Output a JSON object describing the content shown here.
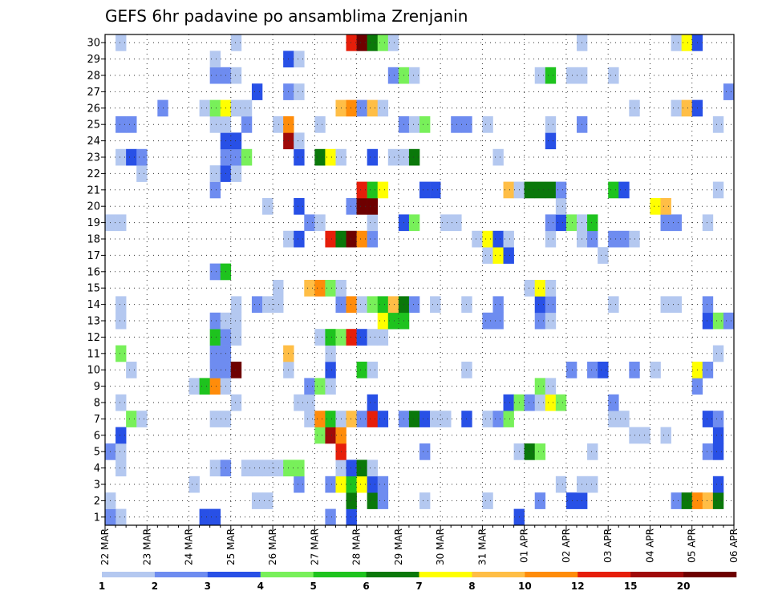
{
  "chart_data": {
    "type": "heatmap",
    "title": "GEFS 6hr padavine po ansamblima Zrenjanin",
    "x_tick_labels": [
      "22 MAR",
      "23 MAR",
      "24 MAR",
      "25 MAR",
      "26 MAR",
      "27 MAR",
      "28 MAR",
      "29 MAR",
      "30 MAR",
      "31 MAR",
      "01 APR",
      "02 APR",
      "03 APR",
      "04 APR",
      "05 APR",
      "06 APR"
    ],
    "y_tick_labels": [
      "1",
      "2",
      "3",
      "4",
      "5",
      "6",
      "7",
      "8",
      "9",
      "10",
      "11",
      "12",
      "13",
      "14",
      "15",
      "16",
      "17",
      "18",
      "19",
      "20",
      "21",
      "22",
      "23",
      "24",
      "25",
      "26",
      "27",
      "28",
      "29",
      "30"
    ],
    "n_members": 30,
    "n_timesteps": 60,
    "steps_per_day": 4,
    "legend_labels": [
      "1",
      "2",
      "3",
      "4",
      "5",
      "6",
      "7",
      "8",
      "10",
      "12",
      "15",
      "20"
    ],
    "level_colors": [
      "#b4c8f0",
      "#6e8cf0",
      "#2850e6",
      "#78f05a",
      "#1ec31e",
      "#0a780a",
      "#ffff00",
      "#ffbe46",
      "#ff8c0a",
      "#e61e0a",
      "#a00a0a",
      "#6e0000"
    ],
    "cells": [
      [
        0,
        1,
        1
      ],
      [
        1,
        1,
        1
      ],
      [
        0,
        1,
        2
      ],
      [
        9,
        1,
        3
      ],
      [
        10,
        1,
        3
      ],
      [
        21,
        1,
        2
      ],
      [
        23,
        1,
        3
      ],
      [
        39,
        1,
        3
      ],
      [
        0,
        2,
        1
      ],
      [
        14,
        2,
        1
      ],
      [
        15,
        2,
        1
      ],
      [
        23,
        2,
        6
      ],
      [
        25,
        2,
        6
      ],
      [
        26,
        2,
        2
      ],
      [
        30,
        2,
        1
      ],
      [
        36,
        2,
        1
      ],
      [
        41,
        2,
        2
      ],
      [
        44,
        2,
        3
      ],
      [
        45,
        2,
        3
      ],
      [
        54,
        2,
        2
      ],
      [
        55,
        2,
        6
      ],
      [
        56,
        2,
        9
      ],
      [
        57,
        2,
        8
      ],
      [
        58,
        2,
        6
      ],
      [
        8,
        3,
        1
      ],
      [
        18,
        3,
        2
      ],
      [
        21,
        3,
        2
      ],
      [
        22,
        3,
        7
      ],
      [
        23,
        3,
        5
      ],
      [
        24,
        3,
        7
      ],
      [
        25,
        3,
        3
      ],
      [
        26,
        3,
        2
      ],
      [
        43,
        3,
        1
      ],
      [
        45,
        3,
        1
      ],
      [
        46,
        3,
        1
      ],
      [
        58,
        3,
        3
      ],
      [
        1,
        4,
        1
      ],
      [
        10,
        4,
        1
      ],
      [
        11,
        4,
        2
      ],
      [
        13,
        4,
        1
      ],
      [
        14,
        4,
        1
      ],
      [
        15,
        4,
        1
      ],
      [
        16,
        4,
        1
      ],
      [
        17,
        4,
        4
      ],
      [
        18,
        4,
        4
      ],
      [
        22,
        4,
        1
      ],
      [
        23,
        4,
        3
      ],
      [
        24,
        4,
        6
      ],
      [
        25,
        4,
        1
      ],
      [
        0,
        5,
        2
      ],
      [
        1,
        5,
        1
      ],
      [
        22,
        5,
        10
      ],
      [
        30,
        5,
        2
      ],
      [
        39,
        5,
        1
      ],
      [
        40,
        5,
        6
      ],
      [
        41,
        5,
        4
      ],
      [
        46,
        5,
        1
      ],
      [
        57,
        5,
        2
      ],
      [
        58,
        5,
        3
      ],
      [
        1,
        6,
        3
      ],
      [
        20,
        6,
        4
      ],
      [
        21,
        6,
        11
      ],
      [
        22,
        6,
        9
      ],
      [
        50,
        6,
        1
      ],
      [
        51,
        6,
        1
      ],
      [
        53,
        6,
        1
      ],
      [
        58,
        6,
        3
      ],
      [
        2,
        7,
        4
      ],
      [
        3,
        7,
        1
      ],
      [
        10,
        7,
        1
      ],
      [
        11,
        7,
        1
      ],
      [
        19,
        7,
        1
      ],
      [
        20,
        7,
        9
      ],
      [
        21,
        7,
        5
      ],
      [
        22,
        7,
        1
      ],
      [
        23,
        7,
        8
      ],
      [
        24,
        7,
        2
      ],
      [
        25,
        7,
        10
      ],
      [
        26,
        7,
        3
      ],
      [
        28,
        7,
        2
      ],
      [
        29,
        7,
        6
      ],
      [
        30,
        7,
        3
      ],
      [
        31,
        7,
        1
      ],
      [
        32,
        7,
        1
      ],
      [
        34,
        7,
        3
      ],
      [
        36,
        7,
        1
      ],
      [
        37,
        7,
        2
      ],
      [
        38,
        7,
        4
      ],
      [
        48,
        7,
        1
      ],
      [
        49,
        7,
        1
      ],
      [
        57,
        7,
        3
      ],
      [
        58,
        7,
        2
      ],
      [
        1,
        8,
        1
      ],
      [
        12,
        8,
        1
      ],
      [
        18,
        8,
        1
      ],
      [
        19,
        8,
        1
      ],
      [
        25,
        8,
        3
      ],
      [
        38,
        8,
        3
      ],
      [
        39,
        8,
        4
      ],
      [
        40,
        8,
        2
      ],
      [
        41,
        8,
        1
      ],
      [
        42,
        8,
        7
      ],
      [
        43,
        8,
        4
      ],
      [
        48,
        8,
        2
      ],
      [
        8,
        9,
        1
      ],
      [
        9,
        9,
        5
      ],
      [
        10,
        9,
        9
      ],
      [
        11,
        9,
        1
      ],
      [
        19,
        9,
        2
      ],
      [
        20,
        9,
        4
      ],
      [
        21,
        9,
        1
      ],
      [
        41,
        9,
        4
      ],
      [
        42,
        9,
        1
      ],
      [
        56,
        9,
        2
      ],
      [
        2,
        10,
        1
      ],
      [
        10,
        10,
        2
      ],
      [
        11,
        10,
        2
      ],
      [
        12,
        10,
        12
      ],
      [
        17,
        10,
        1
      ],
      [
        21,
        10,
        3
      ],
      [
        24,
        10,
        5
      ],
      [
        25,
        10,
        1
      ],
      [
        34,
        10,
        1
      ],
      [
        44,
        10,
        2
      ],
      [
        46,
        10,
        2
      ],
      [
        47,
        10,
        3
      ],
      [
        50,
        10,
        2
      ],
      [
        52,
        10,
        1
      ],
      [
        56,
        10,
        7
      ],
      [
        57,
        10,
        2
      ],
      [
        1,
        11,
        4
      ],
      [
        10,
        11,
        2
      ],
      [
        11,
        11,
        2
      ],
      [
        17,
        11,
        8
      ],
      [
        21,
        11,
        1
      ],
      [
        58,
        11,
        1
      ],
      [
        10,
        12,
        5
      ],
      [
        11,
        12,
        2
      ],
      [
        12,
        12,
        1
      ],
      [
        20,
        12,
        1
      ],
      [
        21,
        12,
        5
      ],
      [
        22,
        12,
        4
      ],
      [
        23,
        12,
        10
      ],
      [
        24,
        12,
        3
      ],
      [
        25,
        12,
        1
      ],
      [
        26,
        12,
        1
      ],
      [
        1,
        13,
        1
      ],
      [
        10,
        13,
        2
      ],
      [
        11,
        13,
        1
      ],
      [
        12,
        13,
        1
      ],
      [
        26,
        13,
        7
      ],
      [
        27,
        13,
        5
      ],
      [
        28,
        13,
        5
      ],
      [
        36,
        13,
        2
      ],
      [
        37,
        13,
        2
      ],
      [
        41,
        13,
        2
      ],
      [
        42,
        13,
        1
      ],
      [
        57,
        13,
        3
      ],
      [
        58,
        13,
        4
      ],
      [
        59,
        13,
        2
      ],
      [
        1,
        14,
        1
      ],
      [
        12,
        14,
        1
      ],
      [
        14,
        14,
        2
      ],
      [
        15,
        14,
        1
      ],
      [
        16,
        14,
        1
      ],
      [
        22,
        14,
        2
      ],
      [
        23,
        14,
        9
      ],
      [
        24,
        14,
        1
      ],
      [
        25,
        14,
        4
      ],
      [
        26,
        14,
        5
      ],
      [
        27,
        14,
        8
      ],
      [
        28,
        14,
        6
      ],
      [
        29,
        14,
        2
      ],
      [
        31,
        14,
        1
      ],
      [
        34,
        14,
        1
      ],
      [
        37,
        14,
        2
      ],
      [
        41,
        14,
        3
      ],
      [
        42,
        14,
        2
      ],
      [
        48,
        14,
        1
      ],
      [
        53,
        14,
        1
      ],
      [
        54,
        14,
        1
      ],
      [
        57,
        14,
        2
      ],
      [
        16,
        15,
        1
      ],
      [
        19,
        15,
        8
      ],
      [
        20,
        15,
        9
      ],
      [
        21,
        15,
        4
      ],
      [
        22,
        15,
        1
      ],
      [
        40,
        15,
        1
      ],
      [
        41,
        15,
        7
      ],
      [
        42,
        15,
        1
      ],
      [
        10,
        16,
        2
      ],
      [
        11,
        16,
        5
      ],
      [
        36,
        17,
        1
      ],
      [
        37,
        17,
        7
      ],
      [
        38,
        17,
        3
      ],
      [
        47,
        17,
        1
      ],
      [
        17,
        18,
        1
      ],
      [
        18,
        18,
        3
      ],
      [
        21,
        18,
        10
      ],
      [
        22,
        18,
        6
      ],
      [
        23,
        18,
        12
      ],
      [
        24,
        18,
        9
      ],
      [
        25,
        18,
        2
      ],
      [
        35,
        18,
        1
      ],
      [
        36,
        18,
        7
      ],
      [
        37,
        18,
        3
      ],
      [
        38,
        18,
        1
      ],
      [
        42,
        18,
        1
      ],
      [
        45,
        18,
        1
      ],
      [
        46,
        18,
        2
      ],
      [
        48,
        18,
        2
      ],
      [
        49,
        18,
        2
      ],
      [
        50,
        18,
        1
      ],
      [
        0,
        19,
        1
      ],
      [
        1,
        19,
        1
      ],
      [
        19,
        19,
        2
      ],
      [
        20,
        19,
        1
      ],
      [
        25,
        19,
        1
      ],
      [
        28,
        19,
        3
      ],
      [
        29,
        19,
        4
      ],
      [
        32,
        19,
        1
      ],
      [
        33,
        19,
        1
      ],
      [
        42,
        19,
        2
      ],
      [
        43,
        19,
        3
      ],
      [
        44,
        19,
        4
      ],
      [
        45,
        19,
        1
      ],
      [
        46,
        19,
        5
      ],
      [
        53,
        19,
        2
      ],
      [
        54,
        19,
        2
      ],
      [
        57,
        19,
        1
      ],
      [
        15,
        20,
        1
      ],
      [
        18,
        20,
        3
      ],
      [
        23,
        20,
        2
      ],
      [
        24,
        20,
        12
      ],
      [
        25,
        20,
        12
      ],
      [
        43,
        20,
        1
      ],
      [
        52,
        20,
        7
      ],
      [
        53,
        20,
        8
      ],
      [
        10,
        21,
        2
      ],
      [
        24,
        21,
        10
      ],
      [
        25,
        21,
        5
      ],
      [
        26,
        21,
        7
      ],
      [
        30,
        21,
        3
      ],
      [
        31,
        21,
        3
      ],
      [
        38,
        21,
        8
      ],
      [
        39,
        21,
        1
      ],
      [
        40,
        21,
        6
      ],
      [
        41,
        21,
        6
      ],
      [
        42,
        21,
        6
      ],
      [
        43,
        21,
        2
      ],
      [
        48,
        21,
        5
      ],
      [
        49,
        21,
        3
      ],
      [
        58,
        21,
        1
      ],
      [
        3,
        22,
        1
      ],
      [
        10,
        22,
        1
      ],
      [
        11,
        22,
        3
      ],
      [
        12,
        22,
        1
      ],
      [
        1,
        23,
        1
      ],
      [
        2,
        23,
        3
      ],
      [
        3,
        23,
        2
      ],
      [
        11,
        23,
        2
      ],
      [
        12,
        23,
        2
      ],
      [
        13,
        23,
        4
      ],
      [
        18,
        23,
        3
      ],
      [
        20,
        23,
        6
      ],
      [
        21,
        23,
        7
      ],
      [
        22,
        23,
        1
      ],
      [
        25,
        23,
        3
      ],
      [
        27,
        23,
        1
      ],
      [
        28,
        23,
        1
      ],
      [
        29,
        23,
        6
      ],
      [
        37,
        23,
        1
      ],
      [
        11,
        24,
        3
      ],
      [
        12,
        24,
        3
      ],
      [
        17,
        24,
        11
      ],
      [
        18,
        24,
        1
      ],
      [
        42,
        24,
        3
      ],
      [
        1,
        25,
        2
      ],
      [
        2,
        25,
        2
      ],
      [
        10,
        25,
        1
      ],
      [
        11,
        25,
        1
      ],
      [
        13,
        25,
        2
      ],
      [
        16,
        25,
        1
      ],
      [
        17,
        25,
        9
      ],
      [
        20,
        25,
        1
      ],
      [
        28,
        25,
        2
      ],
      [
        29,
        25,
        1
      ],
      [
        30,
        25,
        4
      ],
      [
        33,
        25,
        2
      ],
      [
        34,
        25,
        2
      ],
      [
        36,
        25,
        1
      ],
      [
        42,
        25,
        1
      ],
      [
        45,
        25,
        2
      ],
      [
        58,
        25,
        1
      ],
      [
        5,
        26,
        2
      ],
      [
        9,
        26,
        1
      ],
      [
        10,
        26,
        4
      ],
      [
        11,
        26,
        7
      ],
      [
        12,
        26,
        1
      ],
      [
        13,
        26,
        1
      ],
      [
        22,
        26,
        8
      ],
      [
        23,
        26,
        9
      ],
      [
        24,
        26,
        2
      ],
      [
        25,
        26,
        8
      ],
      [
        26,
        26,
        1
      ],
      [
        50,
        26,
        1
      ],
      [
        54,
        26,
        1
      ],
      [
        55,
        26,
        8
      ],
      [
        56,
        26,
        3
      ],
      [
        14,
        27,
        3
      ],
      [
        17,
        27,
        2
      ],
      [
        18,
        27,
        1
      ],
      [
        59,
        27,
        2
      ],
      [
        10,
        28,
        2
      ],
      [
        11,
        28,
        2
      ],
      [
        12,
        28,
        1
      ],
      [
        27,
        28,
        2
      ],
      [
        28,
        28,
        4
      ],
      [
        29,
        28,
        1
      ],
      [
        41,
        28,
        1
      ],
      [
        42,
        28,
        5
      ],
      [
        44,
        28,
        1
      ],
      [
        45,
        28,
        1
      ],
      [
        48,
        28,
        1
      ],
      [
        10,
        29,
        1
      ],
      [
        17,
        29,
        3
      ],
      [
        18,
        29,
        1
      ],
      [
        1,
        30,
        1
      ],
      [
        12,
        30,
        1
      ],
      [
        23,
        30,
        10
      ],
      [
        24,
        30,
        12
      ],
      [
        25,
        30,
        6
      ],
      [
        26,
        30,
        4
      ],
      [
        27,
        30,
        1
      ],
      [
        45,
        30,
        1
      ],
      [
        54,
        30,
        1
      ],
      [
        55,
        30,
        7
      ],
      [
        56,
        30,
        3
      ]
    ]
  }
}
